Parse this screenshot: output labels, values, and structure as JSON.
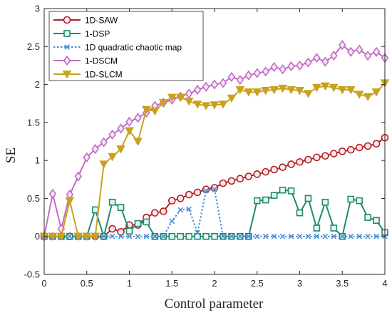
{
  "chart_data": {
    "type": "line",
    "xlabel": "Control parameter",
    "ylabel": "SE",
    "xlim": [
      0,
      4
    ],
    "ylim": [
      -0.5,
      3
    ],
    "xticks": [
      0,
      0.5,
      1,
      1.5,
      2,
      2.5,
      3,
      3.5,
      4
    ],
    "xtick_labels": [
      "0",
      "0.5",
      "1",
      "1.5",
      "2",
      "2.5",
      "3",
      "3.5",
      "4"
    ],
    "yticks": [
      -0.5,
      0,
      0.5,
      1,
      1.5,
      2,
      2.5,
      3
    ],
    "ytick_labels": [
      "-0.5",
      "0",
      "0.5",
      "1",
      "1.5",
      "2",
      "2.5",
      "3"
    ],
    "grid": false,
    "legend_position": "top-left",
    "x": [
      0,
      0.1,
      0.2,
      0.3,
      0.4,
      0.5,
      0.6,
      0.7,
      0.8,
      0.9,
      1.0,
      1.1,
      1.2,
      1.3,
      1.4,
      1.5,
      1.6,
      1.7,
      1.8,
      1.9,
      2.0,
      2.1,
      2.2,
      2.3,
      2.4,
      2.5,
      2.6,
      2.7,
      2.8,
      2.9,
      3.0,
      3.1,
      3.2,
      3.3,
      3.4,
      3.5,
      3.6,
      3.7,
      3.8,
      3.9,
      4.0
    ],
    "series": [
      {
        "name": "1D-SAW",
        "color": "#b22222",
        "marker": "circle",
        "dashed": false,
        "values": [
          0,
          0,
          0,
          0,
          0,
          0,
          0,
          0,
          0.1,
          0.06,
          0.15,
          0.15,
          0.25,
          0.31,
          0.33,
          0.47,
          0.5,
          0.55,
          0.58,
          0.62,
          0.64,
          0.7,
          0.73,
          0.76,
          0.79,
          0.82,
          0.85,
          0.88,
          0.91,
          0.95,
          0.98,
          1.01,
          1.04,
          1.06,
          1.09,
          1.12,
          1.14,
          1.17,
          1.19,
          1.22,
          1.3
        ]
      },
      {
        "name": "1-DSP",
        "color": "#1f8a70",
        "marker": "square",
        "dashed": false,
        "values": [
          0,
          0,
          0,
          0,
          0,
          0,
          0.35,
          0,
          0.45,
          0.38,
          0.07,
          0.17,
          0.19,
          0,
          0,
          0,
          0,
          0,
          0,
          0,
          0,
          0,
          0,
          0,
          0,
          0.47,
          0.48,
          0.54,
          0.61,
          0.6,
          0.31,
          0.5,
          0.11,
          0.45,
          0.11,
          0,
          0.49,
          0.47,
          0.25,
          0.21,
          0.05
        ]
      },
      {
        "name": "1D quadratic chaotic map",
        "color": "#4a90d9",
        "marker": "x",
        "dashed": true,
        "values": [
          0,
          0,
          0,
          0,
          0,
          0,
          0,
          0,
          0,
          0,
          0,
          0,
          0,
          0,
          0,
          0.2,
          0.35,
          0.36,
          0.05,
          0.6,
          0.62,
          0,
          0,
          0,
          0,
          0,
          0,
          0,
          0,
          0,
          0,
          0,
          0,
          0,
          0,
          0,
          0,
          0,
          0,
          0,
          0
        ]
      },
      {
        "name": "1-DSCM",
        "color": "#c36bc3",
        "marker": "diamond",
        "dashed": false,
        "values": [
          0,
          0.56,
          0.1,
          0.55,
          0.79,
          1.04,
          1.15,
          1.24,
          1.34,
          1.42,
          1.51,
          1.56,
          1.63,
          1.72,
          1.76,
          1.8,
          1.84,
          1.88,
          1.93,
          1.97,
          2.0,
          2.02,
          2.1,
          2.06,
          2.12,
          2.15,
          2.17,
          2.23,
          2.2,
          2.24,
          2.25,
          2.29,
          2.35,
          2.3,
          2.38,
          2.52,
          2.43,
          2.46,
          2.38,
          2.43,
          2.35
        ]
      },
      {
        "name": "1D-SLCM",
        "color": "#c8a21e",
        "marker": "triangle-down",
        "dashed": false,
        "values": [
          0,
          0,
          0,
          0.47,
          0,
          0,
          0,
          0.95,
          1.05,
          1.15,
          1.39,
          1.25,
          1.67,
          1.65,
          1.76,
          1.83,
          1.83,
          1.78,
          1.74,
          1.72,
          1.73,
          1.74,
          1.82,
          1.93,
          1.9,
          1.9,
          1.92,
          1.93,
          1.95,
          1.93,
          1.92,
          1.88,
          1.96,
          1.98,
          1.96,
          1.93,
          1.93,
          1.87,
          1.84,
          1.9,
          2.02
        ]
      }
    ]
  }
}
